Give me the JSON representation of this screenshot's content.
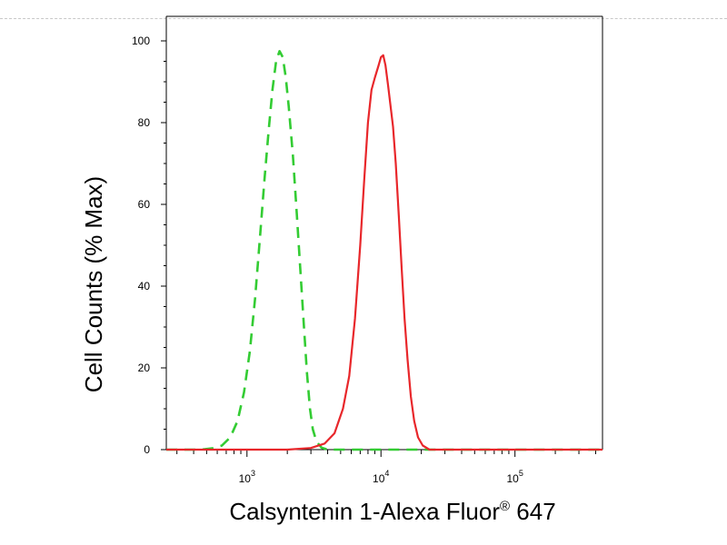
{
  "chart_data": {
    "type": "line",
    "xlabel_main": "Calsyntenin 1-Alexa Fluor",
    "xlabel_sup": "®",
    "xlabel_tail": " 647",
    "ylabel": "Cell Counts (% Max)",
    "x_scale": "log",
    "xlim": [
      250,
      450000
    ],
    "ylim": [
      0,
      100
    ],
    "y_ticks": [
      0,
      20,
      40,
      60,
      80,
      100
    ],
    "x_major_ticks": [
      {
        "value": 1000,
        "base": "10",
        "exp": "3"
      },
      {
        "value": 10000,
        "base": "10",
        "exp": "4"
      },
      {
        "value": 100000,
        "base": "10",
        "exp": "5"
      }
    ],
    "grid": false,
    "legend": "none",
    "series": [
      {
        "color": "#33cc33",
        "style": "dashed",
        "points": [
          [
            250,
            0
          ],
          [
            450,
            0
          ],
          [
            550,
            0.3
          ],
          [
            650,
            1
          ],
          [
            750,
            3
          ],
          [
            850,
            7
          ],
          [
            950,
            14
          ],
          [
            1050,
            24
          ],
          [
            1150,
            37
          ],
          [
            1250,
            52
          ],
          [
            1350,
            66
          ],
          [
            1450,
            78
          ],
          [
            1550,
            88
          ],
          [
            1650,
            95
          ],
          [
            1750,
            97.5
          ],
          [
            1850,
            96
          ],
          [
            1950,
            91
          ],
          [
            2050,
            84
          ],
          [
            2200,
            72
          ],
          [
            2350,
            58
          ],
          [
            2500,
            44
          ],
          [
            2650,
            31
          ],
          [
            2800,
            19
          ],
          [
            2950,
            10
          ],
          [
            3100,
            5
          ],
          [
            3300,
            2
          ],
          [
            3600,
            0.5
          ],
          [
            4000,
            0
          ],
          [
            450000,
            0
          ]
        ]
      },
      {
        "color": "#e8272b",
        "style": "solid",
        "points": [
          [
            250,
            0
          ],
          [
            2000,
            0
          ],
          [
            3000,
            0.4
          ],
          [
            3800,
            1.5
          ],
          [
            4500,
            4
          ],
          [
            5200,
            10
          ],
          [
            5800,
            18
          ],
          [
            6400,
            32
          ],
          [
            7000,
            50
          ],
          [
            7500,
            66
          ],
          [
            8000,
            80
          ],
          [
            8500,
            88
          ],
          [
            9000,
            91
          ],
          [
            9600,
            94
          ],
          [
            10000,
            96
          ],
          [
            10400,
            96.5
          ],
          [
            10800,
            94
          ],
          [
            11300,
            89
          ],
          [
            11800,
            84
          ],
          [
            12300,
            79
          ],
          [
            12900,
            70
          ],
          [
            13600,
            57
          ],
          [
            14300,
            44
          ],
          [
            15000,
            32
          ],
          [
            15800,
            22
          ],
          [
            16700,
            13
          ],
          [
            17700,
            7
          ],
          [
            18900,
            3
          ],
          [
            20500,
            1
          ],
          [
            23000,
            0
          ],
          [
            450000,
            0
          ]
        ]
      }
    ]
  }
}
